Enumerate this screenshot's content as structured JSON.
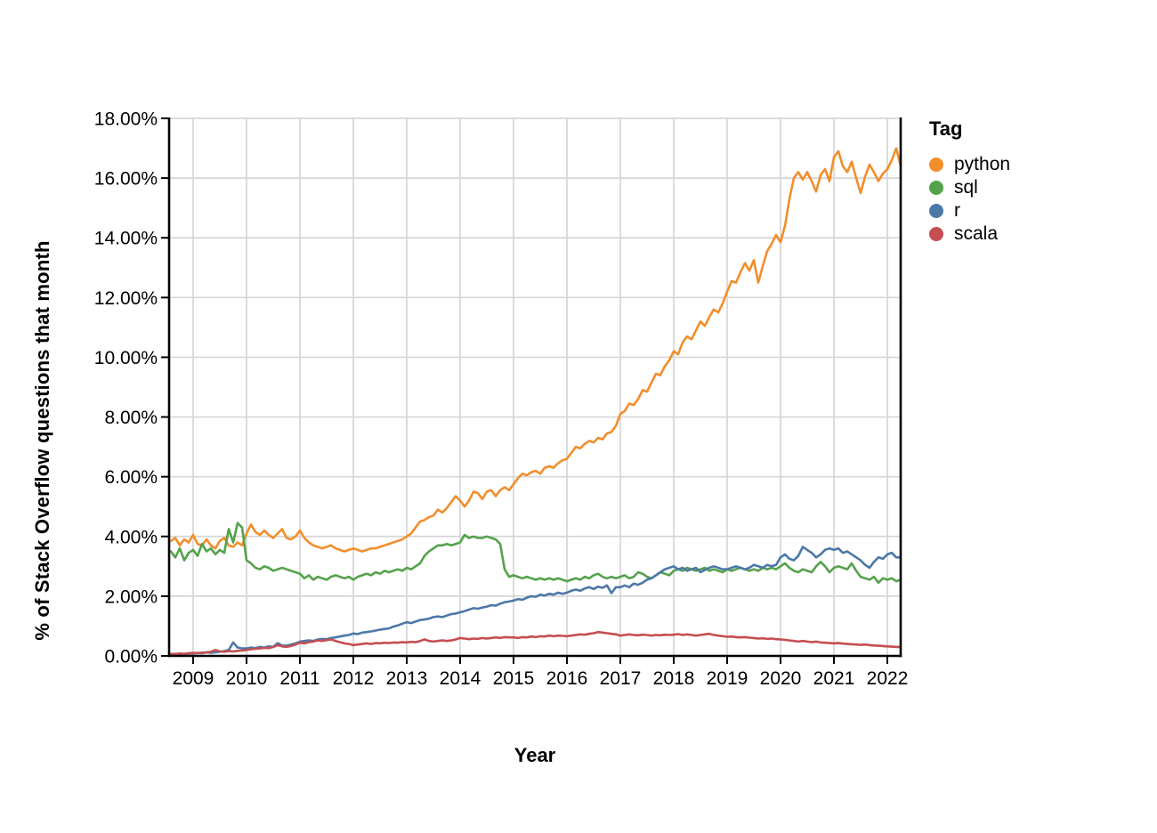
{
  "page": {
    "background": "#ffffff"
  },
  "chart_data": {
    "type": "line",
    "title": "",
    "xlabel": "Year",
    "ylabel": "% of Stack Overflow questions that month",
    "grid": true,
    "xlim": [
      2008.55,
      2022.25
    ],
    "ylim": [
      0,
      18
    ],
    "x_start": 2008.5833,
    "x_step_months": 1,
    "x_ticks": [
      {
        "value": 2009,
        "label": "2009"
      },
      {
        "value": 2010,
        "label": "2010"
      },
      {
        "value": 2011,
        "label": "2011"
      },
      {
        "value": 2012,
        "label": "2012"
      },
      {
        "value": 2013,
        "label": "2013"
      },
      {
        "value": 2014,
        "label": "2014"
      },
      {
        "value": 2015,
        "label": "2015"
      },
      {
        "value": 2016,
        "label": "2016"
      },
      {
        "value": 2017,
        "label": "2017"
      },
      {
        "value": 2018,
        "label": "2018"
      },
      {
        "value": 2019,
        "label": "2019"
      },
      {
        "value": 2020,
        "label": "2020"
      },
      {
        "value": 2021,
        "label": "2021"
      },
      {
        "value": 2022,
        "label": "2022"
      }
    ],
    "y_ticks": [
      {
        "value": 0,
        "label": "0.00%"
      },
      {
        "value": 2,
        "label": "2.00%"
      },
      {
        "value": 4,
        "label": "4.00%"
      },
      {
        "value": 6,
        "label": "6.00%"
      },
      {
        "value": 8,
        "label": "8.00%"
      },
      {
        "value": 10,
        "label": "10.00%"
      },
      {
        "value": 12,
        "label": "12.00%"
      },
      {
        "value": 14,
        "label": "14.00%"
      },
      {
        "value": 16,
        "label": "16.00%"
      },
      {
        "value": 18,
        "label": "18.00%"
      }
    ],
    "legend": {
      "title": "Tag",
      "position": "right"
    },
    "colors": {
      "grid": "#d6d6d6",
      "axis": "#000000"
    },
    "series": [
      {
        "name": "python",
        "color": "#f28e2b",
        "values": [
          3.85,
          3.95,
          3.7,
          3.9,
          3.8,
          4.05,
          3.75,
          3.7,
          3.9,
          3.7,
          3.6,
          3.85,
          3.95,
          3.7,
          3.65,
          3.8,
          3.7,
          4.1,
          4.4,
          4.15,
          4.05,
          4.2,
          4.05,
          3.95,
          4.1,
          4.25,
          3.95,
          3.9,
          4.0,
          4.2,
          3.95,
          3.8,
          3.7,
          3.65,
          3.6,
          3.65,
          3.7,
          3.6,
          3.55,
          3.5,
          3.55,
          3.6,
          3.55,
          3.5,
          3.55,
          3.6,
          3.6,
          3.65,
          3.7,
          3.75,
          3.8,
          3.85,
          3.9,
          4.0,
          4.1,
          4.3,
          4.5,
          4.55,
          4.65,
          4.7,
          4.9,
          4.8,
          4.95,
          5.15,
          5.35,
          5.2,
          5.0,
          5.2,
          5.5,
          5.45,
          5.25,
          5.5,
          5.55,
          5.35,
          5.55,
          5.65,
          5.55,
          5.75,
          5.95,
          6.1,
          6.05,
          6.15,
          6.2,
          6.1,
          6.3,
          6.35,
          6.3,
          6.45,
          6.55,
          6.6,
          6.8,
          7.0,
          6.95,
          7.1,
          7.2,
          7.15,
          7.3,
          7.25,
          7.45,
          7.5,
          7.7,
          8.1,
          8.2,
          8.45,
          8.4,
          8.6,
          8.9,
          8.85,
          9.15,
          9.45,
          9.4,
          9.7,
          9.9,
          10.2,
          10.1,
          10.5,
          10.7,
          10.6,
          10.9,
          11.2,
          11.05,
          11.35,
          11.6,
          11.5,
          11.8,
          12.2,
          12.55,
          12.5,
          12.85,
          13.15,
          12.9,
          13.25,
          12.5,
          13.05,
          13.55,
          13.8,
          14.1,
          13.85,
          14.4,
          15.3,
          16.0,
          16.2,
          15.95,
          16.2,
          15.9,
          15.55,
          16.1,
          16.3,
          15.9,
          16.7,
          16.9,
          16.4,
          16.2,
          16.55,
          16.0,
          15.5,
          16.05,
          16.45,
          16.2,
          15.9,
          16.15,
          16.3,
          16.6,
          17.0,
          16.4
        ]
      },
      {
        "name": "sql",
        "color": "#54a24b",
        "values": [
          3.5,
          3.3,
          3.6,
          3.2,
          3.45,
          3.55,
          3.35,
          3.75,
          3.5,
          3.6,
          3.4,
          3.55,
          3.45,
          4.25,
          3.8,
          4.45,
          4.3,
          3.2,
          3.1,
          2.95,
          2.9,
          3.0,
          2.95,
          2.85,
          2.9,
          2.95,
          2.9,
          2.85,
          2.8,
          2.75,
          2.6,
          2.7,
          2.55,
          2.65,
          2.6,
          2.55,
          2.65,
          2.7,
          2.65,
          2.6,
          2.65,
          2.55,
          2.65,
          2.7,
          2.75,
          2.7,
          2.8,
          2.75,
          2.85,
          2.8,
          2.85,
          2.9,
          2.85,
          2.95,
          2.9,
          3.0,
          3.1,
          3.35,
          3.5,
          3.6,
          3.7,
          3.7,
          3.75,
          3.7,
          3.75,
          3.8,
          4.05,
          3.95,
          4.0,
          3.95,
          3.95,
          4.0,
          3.95,
          3.9,
          3.75,
          2.9,
          2.65,
          2.7,
          2.65,
          2.6,
          2.65,
          2.6,
          2.55,
          2.6,
          2.55,
          2.6,
          2.55,
          2.6,
          2.55,
          2.5,
          2.55,
          2.6,
          2.55,
          2.65,
          2.6,
          2.7,
          2.75,
          2.65,
          2.6,
          2.65,
          2.6,
          2.65,
          2.7,
          2.6,
          2.65,
          2.8,
          2.75,
          2.65,
          2.6,
          2.7,
          2.8,
          2.75,
          2.7,
          2.85,
          2.9,
          2.85,
          2.95,
          2.9,
          2.85,
          2.9,
          2.95,
          2.85,
          2.9,
          2.85,
          2.8,
          2.9,
          2.85,
          2.9,
          2.95,
          2.9,
          2.85,
          2.9,
          2.85,
          2.95,
          2.9,
          2.95,
          2.9,
          3.0,
          3.1,
          2.95,
          2.85,
          2.8,
          2.9,
          2.85,
          2.8,
          3.0,
          3.15,
          3.0,
          2.8,
          2.95,
          3.0,
          2.95,
          2.9,
          3.1,
          2.85,
          2.65,
          2.6,
          2.55,
          2.65,
          2.45,
          2.6,
          2.55,
          2.6,
          2.5,
          2.55
        ]
      },
      {
        "name": "r",
        "color": "#4c78a8",
        "values": [
          0.05,
          0.07,
          0.06,
          0.05,
          0.08,
          0.08,
          0.1,
          0.09,
          0.12,
          0.1,
          0.12,
          0.14,
          0.16,
          0.2,
          0.45,
          0.28,
          0.25,
          0.25,
          0.28,
          0.26,
          0.3,
          0.28,
          0.32,
          0.3,
          0.43,
          0.35,
          0.34,
          0.38,
          0.42,
          0.48,
          0.5,
          0.52,
          0.5,
          0.55,
          0.57,
          0.56,
          0.6,
          0.62,
          0.65,
          0.68,
          0.7,
          0.75,
          0.73,
          0.78,
          0.8,
          0.82,
          0.85,
          0.88,
          0.9,
          0.92,
          0.98,
          1.02,
          1.08,
          1.13,
          1.1,
          1.15,
          1.2,
          1.22,
          1.25,
          1.3,
          1.32,
          1.3,
          1.35,
          1.4,
          1.42,
          1.46,
          1.5,
          1.55,
          1.6,
          1.58,
          1.62,
          1.65,
          1.7,
          1.68,
          1.75,
          1.8,
          1.82,
          1.85,
          1.9,
          1.88,
          1.95,
          2.0,
          1.98,
          2.05,
          2.02,
          2.08,
          2.05,
          2.12,
          2.08,
          2.12,
          2.18,
          2.22,
          2.18,
          2.26,
          2.3,
          2.24,
          2.32,
          2.28,
          2.36,
          2.1,
          2.3,
          2.3,
          2.36,
          2.3,
          2.42,
          2.38,
          2.45,
          2.55,
          2.6,
          2.7,
          2.8,
          2.9,
          2.95,
          3.0,
          2.9,
          2.95,
          2.85,
          2.9,
          2.95,
          2.8,
          2.88,
          2.95,
          3.0,
          2.95,
          2.9,
          2.9,
          2.95,
          3.0,
          2.95,
          2.9,
          2.95,
          3.05,
          3.0,
          2.95,
          3.05,
          3.0,
          3.05,
          3.3,
          3.4,
          3.25,
          3.2,
          3.35,
          3.65,
          3.55,
          3.45,
          3.3,
          3.4,
          3.55,
          3.6,
          3.55,
          3.6,
          3.45,
          3.5,
          3.4,
          3.3,
          3.2,
          3.05,
          2.95,
          3.15,
          3.3,
          3.25,
          3.4,
          3.45,
          3.3,
          3.3
        ]
      },
      {
        "name": "scala",
        "color": "#c44e52",
        "values": [
          0.07,
          0.06,
          0.08,
          0.07,
          0.09,
          0.1,
          0.09,
          0.11,
          0.12,
          0.14,
          0.2,
          0.15,
          0.14,
          0.16,
          0.15,
          0.17,
          0.18,
          0.2,
          0.22,
          0.24,
          0.25,
          0.27,
          0.26,
          0.3,
          0.36,
          0.32,
          0.3,
          0.33,
          0.38,
          0.44,
          0.42,
          0.46,
          0.48,
          0.52,
          0.5,
          0.53,
          0.55,
          0.5,
          0.46,
          0.42,
          0.4,
          0.36,
          0.38,
          0.4,
          0.42,
          0.4,
          0.43,
          0.42,
          0.44,
          0.43,
          0.45,
          0.44,
          0.46,
          0.45,
          0.47,
          0.46,
          0.5,
          0.55,
          0.5,
          0.48,
          0.5,
          0.52,
          0.5,
          0.52,
          0.55,
          0.6,
          0.58,
          0.56,
          0.58,
          0.57,
          0.6,
          0.58,
          0.6,
          0.62,
          0.6,
          0.63,
          0.62,
          0.62,
          0.6,
          0.63,
          0.62,
          0.65,
          0.63,
          0.66,
          0.65,
          0.68,
          0.66,
          0.68,
          0.67,
          0.66,
          0.68,
          0.7,
          0.72,
          0.71,
          0.74,
          0.76,
          0.8,
          0.78,
          0.76,
          0.74,
          0.72,
          0.68,
          0.7,
          0.72,
          0.7,
          0.69,
          0.71,
          0.7,
          0.68,
          0.7,
          0.69,
          0.71,
          0.7,
          0.71,
          0.73,
          0.7,
          0.72,
          0.7,
          0.68,
          0.7,
          0.72,
          0.74,
          0.7,
          0.68,
          0.66,
          0.64,
          0.65,
          0.63,
          0.62,
          0.63,
          0.61,
          0.6,
          0.58,
          0.59,
          0.57,
          0.58,
          0.56,
          0.55,
          0.54,
          0.52,
          0.5,
          0.48,
          0.5,
          0.48,
          0.46,
          0.48,
          0.45,
          0.44,
          0.43,
          0.42,
          0.43,
          0.41,
          0.4,
          0.39,
          0.38,
          0.37,
          0.38,
          0.36,
          0.35,
          0.34,
          0.33,
          0.32,
          0.31,
          0.3,
          0.3
        ]
      }
    ]
  }
}
